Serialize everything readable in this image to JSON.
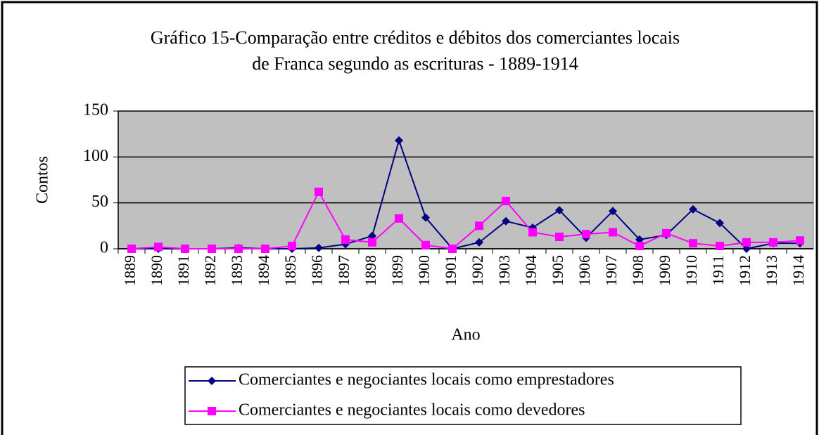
{
  "chart_data": {
    "type": "line",
    "title": [
      "Gráfico 15-Comparação entre créditos e débitos dos comerciantes locais",
      "de Franca segundo as escrituras - 1889-1914"
    ],
    "x_label": "Ano",
    "y_label": "Contos",
    "categories": [
      "1889",
      "1890",
      "1891",
      "1892",
      "1893",
      "1894",
      "1895",
      "1896",
      "1897",
      "1898",
      "1899",
      "1900",
      "1901",
      "1902",
      "1903",
      "1904",
      "1905",
      "1906",
      "1907",
      "1908",
      "1909",
      "1910",
      "1911",
      "1912",
      "1913",
      "1914"
    ],
    "series": [
      {
        "name": "Comerciantes e negociantes locais como emprestadores",
        "color": "#000080",
        "marker": "diamond",
        "values": [
          0,
          0,
          0,
          0,
          1,
          0,
          0,
          1,
          5,
          14,
          118,
          34,
          0,
          7,
          30,
          23,
          42,
          12,
          41,
          10,
          15,
          43,
          28,
          0,
          6,
          6
        ]
      },
      {
        "name": "Comerciantes e negociantes locais como devedores",
        "color": "#ff00ff",
        "marker": "square",
        "values": [
          0,
          2,
          0,
          0,
          0,
          0,
          3,
          62,
          10,
          7,
          33,
          4,
          0,
          25,
          52,
          18,
          13,
          16,
          18,
          3,
          17,
          6,
          3,
          7,
          7,
          9
        ]
      }
    ],
    "ylim": [
      0,
      150
    ],
    "yticks": [
      0,
      50,
      100,
      150
    ],
    "grid": true,
    "plot_background": "#c0c0c0",
    "legend": "bottom"
  }
}
